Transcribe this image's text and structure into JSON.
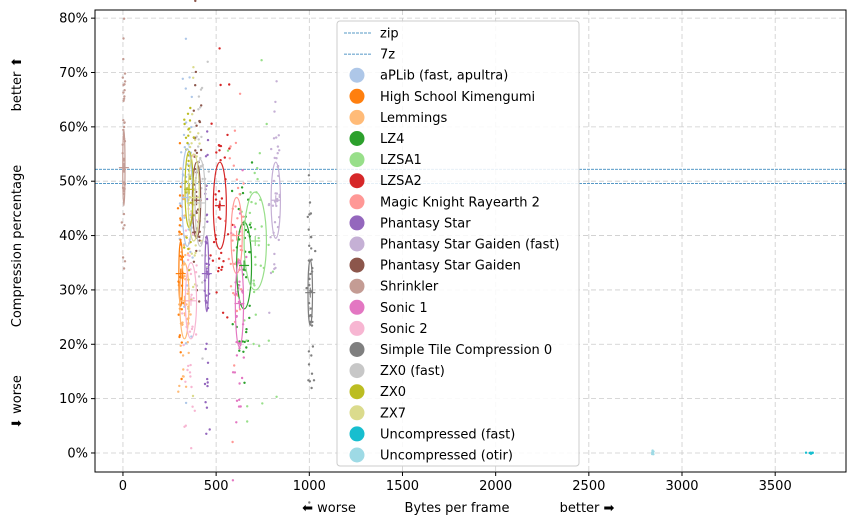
{
  "chart_data": {
    "type": "scatter",
    "xlabel": "Bytes per frame",
    "xlabel_left": "⬅ worse",
    "xlabel_right": "better ➡",
    "ylabel": "Compression percentage",
    "ylabel_top": "better ⬆",
    "ylabel_bottom": "⬇ worse",
    "xlim": [
      -150,
      3880
    ],
    "ylim": [
      -3.5,
      81.5
    ],
    "x_ticks": [
      0,
      500,
      1000,
      1500,
      2000,
      2500,
      3000,
      3500
    ],
    "x_tick_labels": [
      "0",
      "500",
      "1000",
      "1500",
      "2000",
      "2500",
      "3000",
      "3500"
    ],
    "y_ticks": [
      0,
      10,
      20,
      30,
      40,
      50,
      60,
      70,
      80
    ],
    "y_tick_labels": [
      "0%",
      "10%",
      "20%",
      "30%",
      "40%",
      "50%",
      "60%",
      "70%",
      "80%"
    ],
    "grid": true,
    "legend_position": "top-center",
    "reference_lines": [
      {
        "name": "zip",
        "y": 52.2,
        "color": "#1f77b4"
      },
      {
        "name": "7z",
        "y": 49.6,
        "color": "#1f77b4"
      }
    ],
    "series": [
      {
        "name": "aPLib (fast, apultra)",
        "color": "#aec7e8",
        "mean": [
          345,
          47
        ],
        "spread": [
          28,
          9
        ]
      },
      {
        "name": "High School Kimengumi",
        "color": "#ff7f0e",
        "mean": [
          310,
          33
        ],
        "spread": [
          10,
          6
        ]
      },
      {
        "name": "Lemmings",
        "color": "#ffbb78",
        "mean": [
          330,
          28
        ],
        "spread": [
          25,
          7
        ]
      },
      {
        "name": "LZ4",
        "color": "#2ca02c",
        "mean": [
          650,
          34.5
        ],
        "spread": [
          40,
          8
        ]
      },
      {
        "name": "LZSA1",
        "color": "#98df8a",
        "mean": [
          710,
          39
        ],
        "spread": [
          60,
          9
        ]
      },
      {
        "name": "LZSA2",
        "color": "#d62728",
        "mean": [
          520,
          45.5
        ],
        "spread": [
          35,
          8
        ]
      },
      {
        "name": "Magic Knight Rayearth 2",
        "color": "#ff9896",
        "mean": [
          610,
          40
        ],
        "spread": [
          30,
          7
        ]
      },
      {
        "name": "Phantasy Star",
        "color": "#9467bd",
        "mean": [
          450,
          33
        ],
        "spread": [
          10,
          7
        ]
      },
      {
        "name": "Phantasy Star Gaiden (fast)",
        "color": "#c5b0d5",
        "mean": [
          820,
          46.5
        ],
        "spread": [
          25,
          7
        ]
      },
      {
        "name": "Phantasy Star Gaiden",
        "color": "#8c564b",
        "mean": [
          395,
          46.5
        ],
        "spread": [
          22,
          7
        ]
      },
      {
        "name": "Shrinkler",
        "color": "#c49c94",
        "mean": [
          5,
          52.5
        ],
        "spread": [
          6,
          7
        ]
      },
      {
        "name": "Sonic 1",
        "color": "#e377c2",
        "mean": [
          625,
          27.5
        ],
        "spread": [
          22,
          8
        ]
      },
      {
        "name": "Sonic 2",
        "color": "#f7b6d2",
        "mean": [
          365,
          28
        ],
        "spread": [
          30,
          7
        ]
      },
      {
        "name": "Simple Tile Compression 0",
        "color": "#7f7f7f",
        "mean": [
          1005,
          29.5
        ],
        "spread": [
          12,
          6
        ]
      },
      {
        "name": "ZX0 (fast)",
        "color": "#c7c7c7",
        "mean": [
          415,
          46
        ],
        "spread": [
          28,
          8
        ]
      },
      {
        "name": "ZX0",
        "color": "#bcbd22",
        "mean": [
          355,
          48.5
        ],
        "spread": [
          22,
          7
        ]
      },
      {
        "name": "ZX7",
        "color": "#dbdb8d",
        "mean": [
          380,
          47
        ],
        "spread": [
          30,
          8
        ]
      },
      {
        "name": "Uncompressed (fast)",
        "color": "#17becf",
        "mean": [
          3690,
          0
        ],
        "spread": [
          12,
          0.15
        ]
      },
      {
        "name": "Uncompressed (otir)",
        "color": "#9edae5",
        "mean": [
          2840,
          0
        ],
        "spread": [
          6,
          0.15
        ]
      }
    ]
  }
}
